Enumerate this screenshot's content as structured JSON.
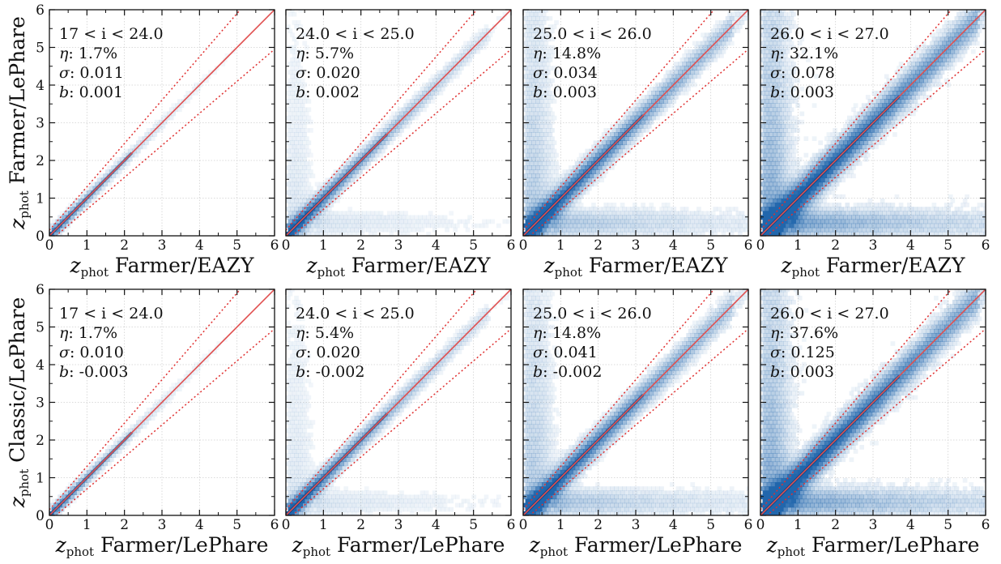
{
  "chart_data": [
    {
      "type": "heatmap",
      "row": 0,
      "xlabel_sub": "phot",
      "xlabel": "Farmer/EAZY",
      "ylabel_sub": "phot",
      "ylabel": "Farmer/LePhare",
      "xlim": [
        0,
        6
      ],
      "ylim": [
        0,
        6
      ],
      "xticks": [
        "0",
        "1",
        "2",
        "3",
        "4",
        "5",
        "6"
      ],
      "yticks": [
        "0",
        "1",
        "2",
        "3",
        "4",
        "5",
        "6"
      ],
      "annotations": [
        "17 < i < 24.0",
        "1.7%",
        "0.011",
        "0.001"
      ]
    },
    {
      "type": "heatmap",
      "row": 0,
      "xlabel_sub": "phot",
      "xlabel": "Farmer/EAZY",
      "xlim": [
        0,
        6
      ],
      "ylim": [
        0,
        6
      ],
      "xticks": [
        "0",
        "1",
        "2",
        "3",
        "4",
        "5",
        "6"
      ],
      "annotations": [
        "24.0 < i < 25.0",
        "5.7%",
        "0.020",
        "0.002"
      ]
    },
    {
      "type": "heatmap",
      "row": 0,
      "xlabel_sub": "phot",
      "xlabel": "Farmer/EAZY",
      "xlim": [
        0,
        6
      ],
      "ylim": [
        0,
        6
      ],
      "xticks": [
        "0",
        "1",
        "2",
        "3",
        "4",
        "5",
        "6"
      ],
      "annotations": [
        "25.0 < i < 26.0",
        "14.8%",
        "0.034",
        "0.003"
      ]
    },
    {
      "type": "heatmap",
      "row": 0,
      "xlabel_sub": "phot",
      "xlabel": "Farmer/EAZY",
      "xlim": [
        0,
        6
      ],
      "ylim": [
        0,
        6
      ],
      "xticks": [
        "0",
        "1",
        "2",
        "3",
        "4",
        "5",
        "6"
      ],
      "annotations": [
        "26.0 < i < 27.0",
        "32.1%",
        "0.078",
        "0.003"
      ]
    },
    {
      "type": "heatmap",
      "row": 1,
      "xlabel_sub": "phot",
      "xlabel": "Farmer/LePhare",
      "ylabel_sub": "phot",
      "ylabel": "Classic/LePhare",
      "xlim": [
        0,
        6
      ],
      "ylim": [
        0,
        6
      ],
      "xticks": [
        "0",
        "1",
        "2",
        "3",
        "4",
        "5",
        "6"
      ],
      "yticks": [
        "0",
        "1",
        "2",
        "3",
        "4",
        "5",
        "6"
      ],
      "annotations": [
        "17 < i < 24.0",
        "1.7%",
        "0.010",
        "-0.003"
      ]
    },
    {
      "type": "heatmap",
      "row": 1,
      "xlabel_sub": "phot",
      "xlabel": "Farmer/LePhare",
      "xlim": [
        0,
        6
      ],
      "ylim": [
        0,
        6
      ],
      "xticks": [
        "0",
        "1",
        "2",
        "3",
        "4",
        "5",
        "6"
      ],
      "annotations": [
        "24.0 < i < 25.0",
        "5.4%",
        "0.020",
        "-0.002"
      ]
    },
    {
      "type": "heatmap",
      "row": 1,
      "xlabel_sub": "phot",
      "xlabel": "Farmer/LePhare",
      "xlim": [
        0,
        6
      ],
      "ylim": [
        0,
        6
      ],
      "xticks": [
        "0",
        "1",
        "2",
        "3",
        "4",
        "5",
        "6"
      ],
      "annotations": [
        "25.0 < i < 26.0",
        "14.8%",
        "0.041",
        "-0.002"
      ]
    },
    {
      "type": "heatmap",
      "row": 1,
      "xlabel_sub": "phot",
      "xlabel": "Farmer/LePhare",
      "xlim": [
        0,
        6
      ],
      "ylim": [
        0,
        6
      ],
      "xticks": [
        "0",
        "1",
        "2",
        "3",
        "4",
        "5",
        "6"
      ],
      "annotations": [
        "26.0 < i < 27.0",
        "37.6%",
        "0.125",
        "0.003"
      ]
    }
  ],
  "symbols": {
    "z": "z",
    "eta": "η",
    "sigma": "σ",
    "b": "b"
  },
  "colors": {
    "one_to_one": "#e05050",
    "outlier_bounds": "#e03030",
    "density": "#2166ac",
    "grid": "#d0d0d0"
  }
}
